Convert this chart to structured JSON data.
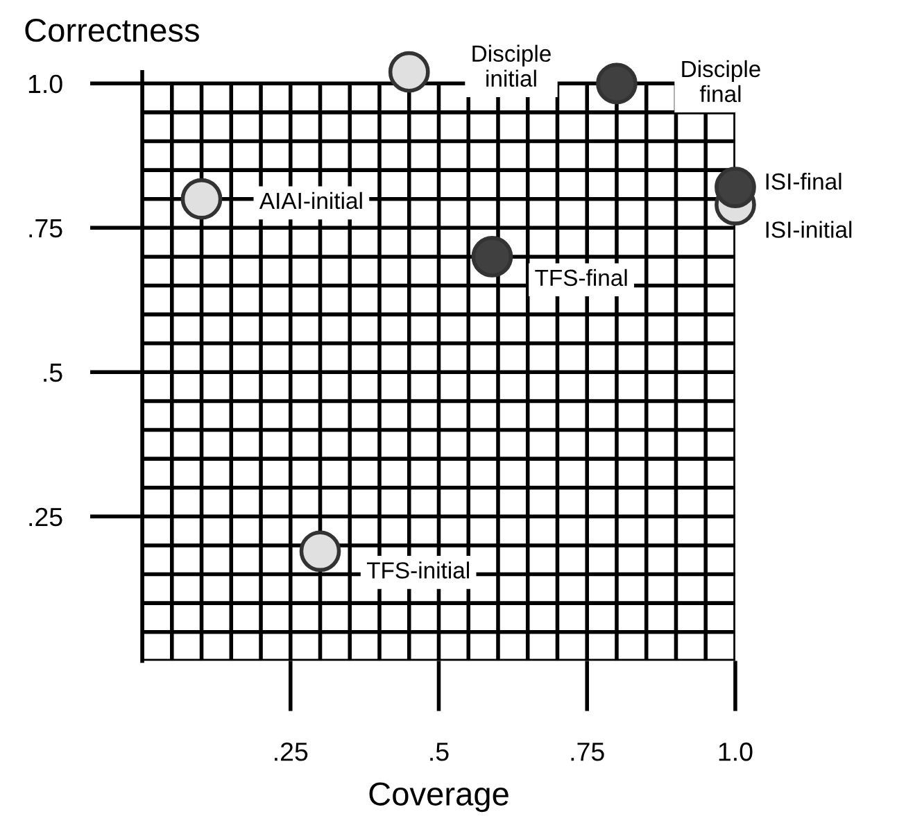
{
  "chart_data": {
    "type": "scatter",
    "xlabel": "Coverage",
    "ylabel": "Correctness",
    "xlim": [
      0,
      1.0
    ],
    "ylim": [
      0,
      1.02
    ],
    "xticks": [
      {
        "value": 0.25,
        "label": ".25"
      },
      {
        "value": 0.5,
        "label": ".5"
      },
      {
        "value": 0.75,
        "label": ".75"
      },
      {
        "value": 1.0,
        "label": "1.0"
      }
    ],
    "yticks": [
      {
        "value": 0.25,
        "label": ".25"
      },
      {
        "value": 0.5,
        "label": ".5"
      },
      {
        "value": 0.75,
        "label": ".75"
      },
      {
        "value": 1.0,
        "label": "1.0"
      }
    ],
    "grid": true,
    "marker": "circle",
    "series": [
      {
        "color": "#e0e0e0",
        "x": [
          0.45,
          0.1,
          1.0,
          0.3
        ],
        "values": [
          1.02,
          0.8,
          0.79,
          0.19
        ]
      },
      {
        "color": "#404040",
        "x": [
          0.8,
          1.0,
          0.59
        ],
        "values": [
          1.0,
          0.82,
          0.7
        ]
      }
    ],
    "annotations": [
      {
        "text": "Disciple\ninitial",
        "x": 0.45,
        "y": 1.02
      },
      {
        "text": "Disciple\nfinal",
        "x": 0.8,
        "y": 1.0
      },
      {
        "text": "AIAI-initial",
        "x": 0.1,
        "y": 0.8
      },
      {
        "text": "ISI-final",
        "x": 1.0,
        "y": 0.82
      },
      {
        "text": "ISI-initial",
        "x": 1.0,
        "y": 0.79
      },
      {
        "text": "TFS-final",
        "x": 0.59,
        "y": 0.7
      },
      {
        "text": "TFS-initial",
        "x": 0.3,
        "y": 0.19
      }
    ]
  }
}
